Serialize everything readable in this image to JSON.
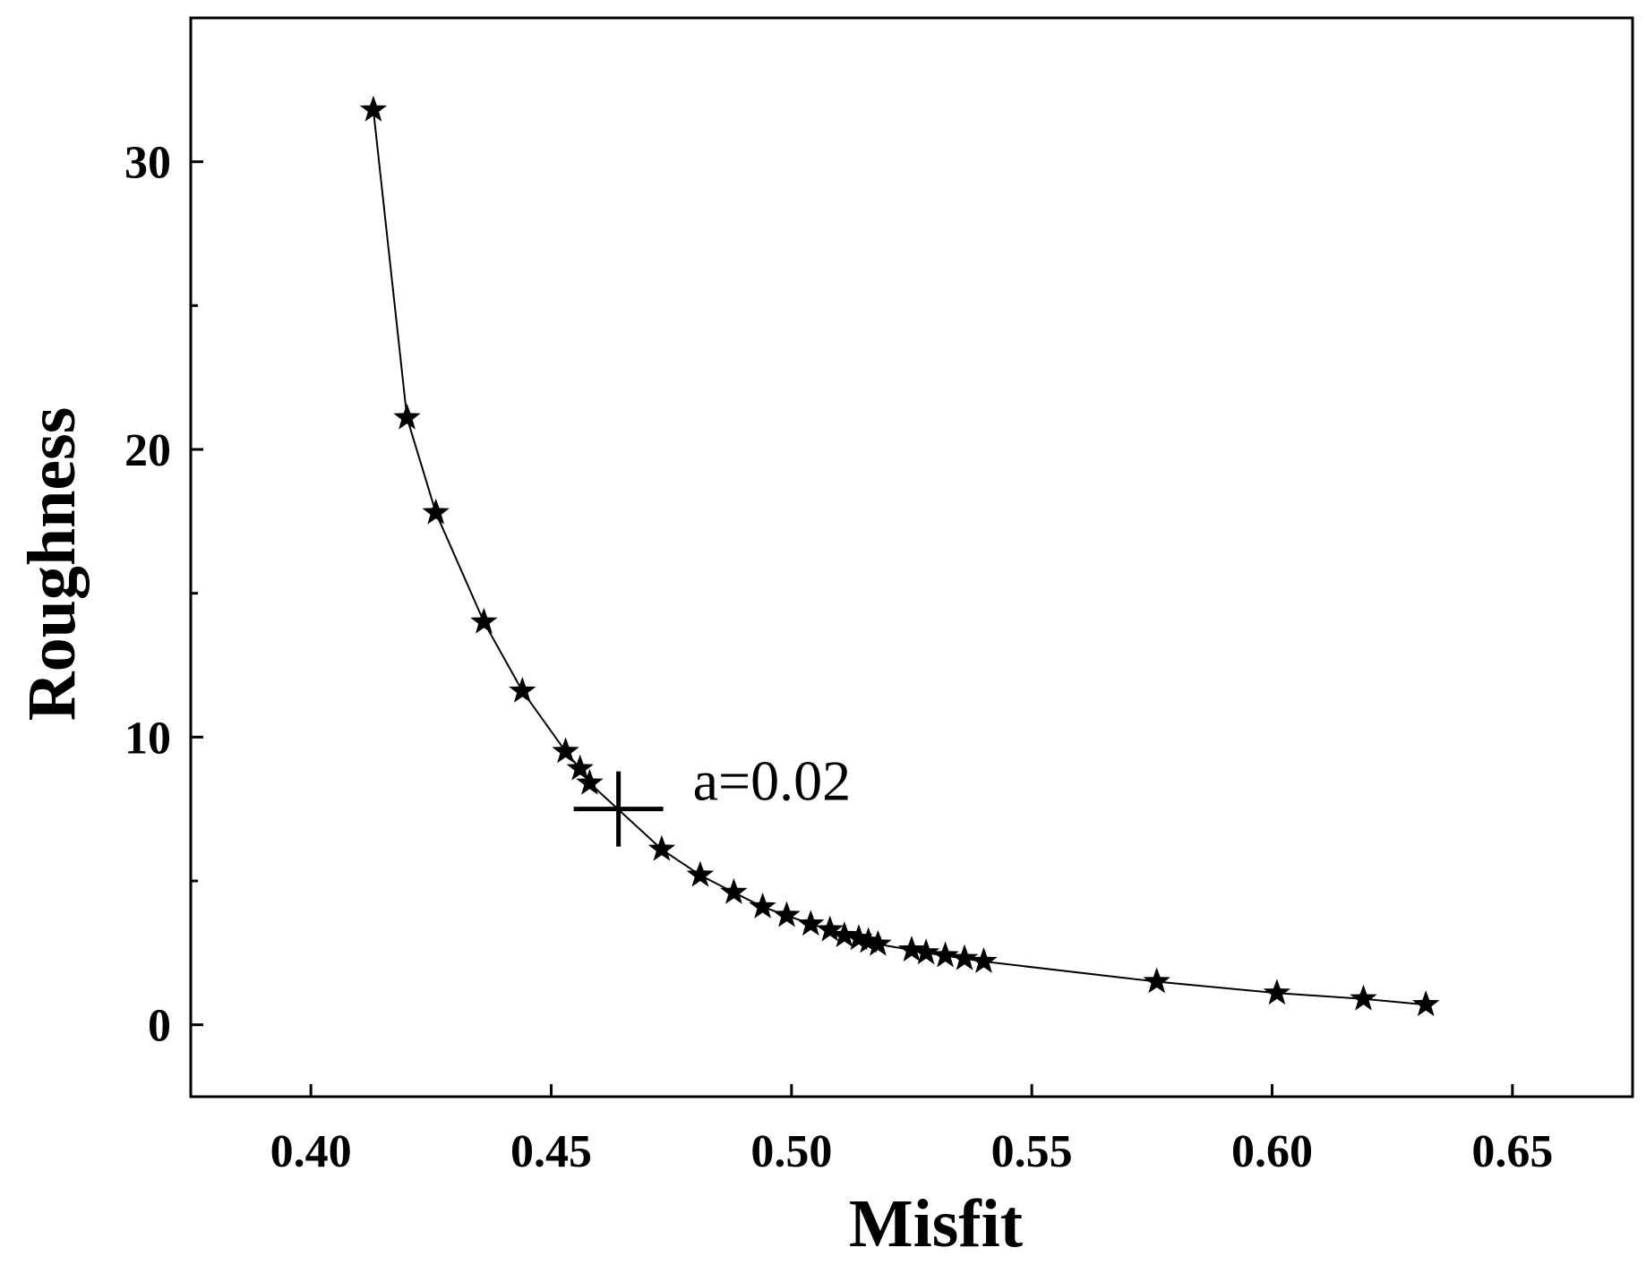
{
  "chart_data": {
    "type": "line",
    "title": "",
    "xlabel": "Misfit",
    "ylabel": "Roughness",
    "xlim": [
      0.375,
      0.675
    ],
    "ylim": [
      -2.5,
      35
    ],
    "xticks": [
      "0.40",
      "0.45",
      "0.50",
      "0.55",
      "0.60",
      "0.65"
    ],
    "xtick_values": [
      0.4,
      0.45,
      0.5,
      0.55,
      0.6,
      0.65
    ],
    "yticks": [
      "0",
      "10",
      "20",
      "30"
    ],
    "ytick_values": [
      0,
      10,
      20,
      30
    ],
    "y_minor_ticks": [
      5,
      15,
      25
    ],
    "grid": false,
    "marker": "star",
    "series": [
      {
        "x": [
          0.413,
          0.42,
          0.426,
          0.436,
          0.444,
          0.453,
          0.456,
          0.458,
          0.473,
          0.481,
          0.488,
          0.494,
          0.499,
          0.504,
          0.508,
          0.511,
          0.514,
          0.516,
          0.518,
          0.525,
          0.528,
          0.532,
          0.536,
          0.54,
          0.576,
          0.601,
          0.619,
          0.632
        ],
        "y": [
          31.8,
          21.1,
          17.8,
          14.0,
          11.6,
          9.5,
          8.9,
          8.4,
          6.1,
          5.2,
          4.6,
          4.1,
          3.8,
          3.5,
          3.3,
          3.1,
          3.0,
          2.9,
          2.8,
          2.6,
          2.5,
          2.4,
          2.3,
          2.2,
          1.5,
          1.1,
          0.9,
          0.7
        ]
      }
    ],
    "annotation": {
      "text": "a=0.02",
      "x": 0.464,
      "y": 7.5
    }
  }
}
